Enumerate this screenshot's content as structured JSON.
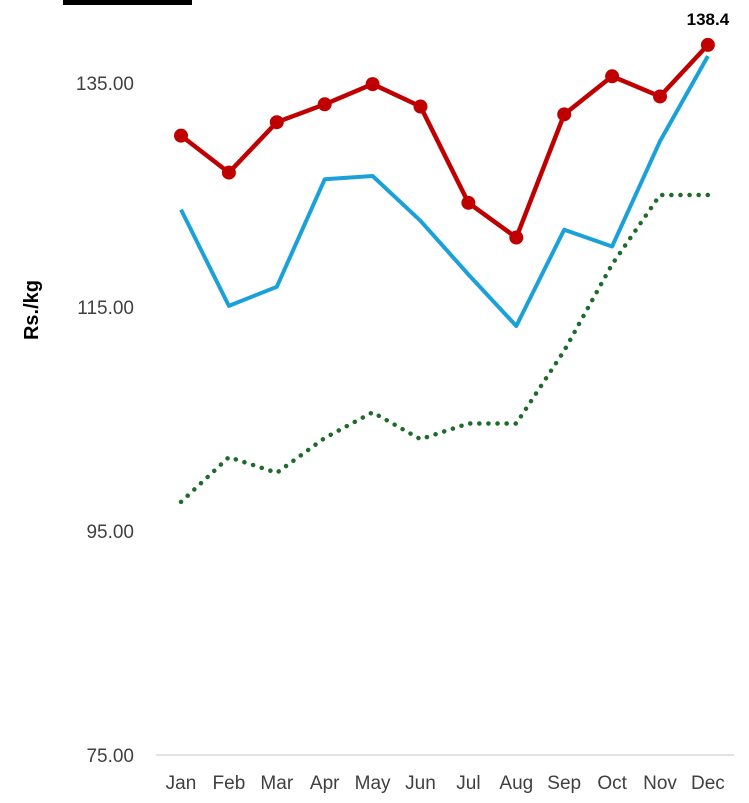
{
  "chart_data": {
    "type": "line",
    "categories": [
      "Jan",
      "Feb",
      "Mar",
      "Apr",
      "May",
      "Jun",
      "Jul",
      "Aug",
      "Sep",
      "Oct",
      "Nov",
      "Dec"
    ],
    "ylabel": "Rs./kg",
    "ylim": [
      75,
      137
    ],
    "yticks": [
      "75.00",
      "95.00",
      "115.00",
      "135.00"
    ],
    "grid": false,
    "series": [
      {
        "color": "#c00000",
        "style": "solid-markers",
        "values": [
          130.3,
          127.0,
          131.5,
          133.1,
          134.9,
          132.9,
          124.3,
          121.2,
          132.2,
          135.6,
          133.8,
          138.4
        ],
        "labels": [
          null,
          null,
          null,
          null,
          null,
          null,
          null,
          null,
          null,
          null,
          null,
          "138.4"
        ]
      },
      {
        "color": "#1ba1d9",
        "style": "solid",
        "values": [
          123.7,
          115.1,
          116.8,
          126.4,
          126.7,
          122.7,
          117.9,
          113.3,
          121.9,
          120.4,
          129.8,
          137.4
        ],
        "labels": []
      },
      {
        "color": "#1e6b2b",
        "style": "dotted",
        "values": [
          97.6,
          101.6,
          100.2,
          103.3,
          105.6,
          103.2,
          104.6,
          104.6,
          111.1,
          118.8,
          125.0,
          125.0
        ],
        "labels": []
      }
    ]
  }
}
